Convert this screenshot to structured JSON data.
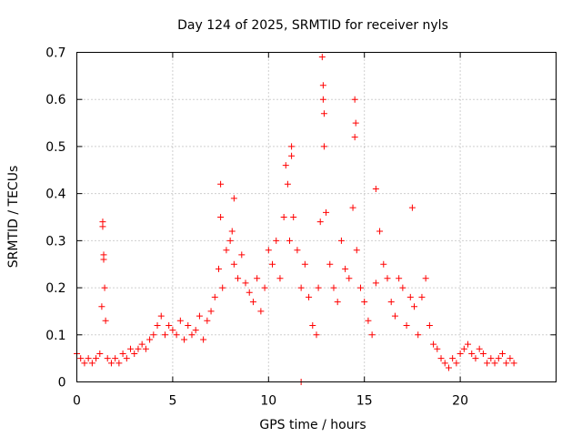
{
  "chart_data": {
    "type": "scatter",
    "title": "Day 124 of 2025, SRMTID for receiver nyls",
    "xlabel": "GPS time / hours",
    "ylabel": "SRMTID / TECUs",
    "xlim": [
      0,
      25
    ],
    "ylim": [
      0,
      0.7
    ],
    "xticks": [
      0,
      5,
      10,
      15,
      20
    ],
    "xtick_labels": [
      "0",
      "5",
      "10",
      "15",
      "20"
    ],
    "yticks": [
      0,
      0.1,
      0.2,
      0.3,
      0.4,
      0.5,
      0.6,
      0.7
    ],
    "ytick_labels": [
      "0",
      "0.1",
      "0.2",
      "0.3",
      "0.4",
      "0.5",
      "0.6",
      "0.7"
    ],
    "grid": true,
    "marker": "plus",
    "color": "#ff0000",
    "series": [
      {
        "name": "SRMTID",
        "x": [
          0.0,
          0.2,
          0.4,
          0.6,
          0.8,
          1.0,
          1.2,
          1.3,
          1.35,
          1.4,
          1.45,
          1.5,
          1.6,
          1.8,
          2.0,
          2.2,
          2.4,
          2.6,
          2.8,
          3.0,
          3.2,
          3.4,
          3.6,
          3.8,
          4.0,
          4.2,
          4.4,
          4.6,
          4.8,
          5.0,
          5.2,
          5.4,
          5.6,
          5.8,
          6.0,
          6.2,
          6.4,
          6.6,
          6.8,
          7.0,
          7.2,
          7.4,
          7.5,
          7.6,
          7.8,
          8.0,
          8.1,
          8.2,
          8.4,
          8.6,
          8.8,
          9.0,
          9.2,
          9.4,
          9.6,
          9.8,
          10.0,
          10.2,
          10.4,
          10.6,
          10.8,
          11.0,
          11.1,
          11.2,
          11.3,
          11.5,
          11.7,
          11.9,
          12.1,
          12.3,
          12.5,
          12.6,
          12.7,
          12.8,
          12.85,
          12.9,
          13.0,
          13.2,
          13.4,
          13.6,
          13.8,
          14.0,
          14.2,
          14.4,
          14.5,
          14.6,
          14.8,
          15.0,
          15.2,
          15.4,
          15.6,
          15.8,
          16.0,
          16.2,
          16.4,
          16.6,
          16.8,
          17.0,
          17.2,
          17.4,
          17.6,
          17.8,
          18.0,
          18.2,
          18.4,
          18.6,
          18.8,
          19.0,
          19.2,
          19.4,
          19.6,
          19.8,
          20.0,
          20.2,
          20.4,
          20.6,
          20.8,
          21.0,
          21.2,
          21.4,
          21.6,
          21.8,
          22.0,
          22.2,
          22.4,
          22.6,
          22.8,
          11.7,
          1.35,
          1.4,
          7.5,
          8.2,
          10.9,
          11.2,
          12.85,
          12.9,
          14.5,
          14.55,
          15.6,
          17.5
        ],
        "y": [
          0.06,
          0.05,
          0.04,
          0.05,
          0.04,
          0.05,
          0.06,
          0.16,
          0.33,
          0.27,
          0.2,
          0.13,
          0.05,
          0.04,
          0.05,
          0.04,
          0.06,
          0.05,
          0.07,
          0.06,
          0.07,
          0.08,
          0.07,
          0.09,
          0.1,
          0.12,
          0.14,
          0.1,
          0.12,
          0.11,
          0.1,
          0.13,
          0.09,
          0.12,
          0.1,
          0.11,
          0.14,
          0.09,
          0.13,
          0.15,
          0.18,
          0.24,
          0.35,
          0.2,
          0.28,
          0.3,
          0.32,
          0.25,
          0.22,
          0.27,
          0.21,
          0.19,
          0.17,
          0.22,
          0.15,
          0.2,
          0.28,
          0.25,
          0.3,
          0.22,
          0.35,
          0.42,
          0.3,
          0.48,
          0.35,
          0.28,
          0.2,
          0.25,
          0.18,
          0.12,
          0.1,
          0.2,
          0.34,
          0.69,
          0.63,
          0.5,
          0.36,
          0.25,
          0.2,
          0.17,
          0.3,
          0.24,
          0.22,
          0.37,
          0.52,
          0.28,
          0.2,
          0.17,
          0.13,
          0.1,
          0.21,
          0.32,
          0.25,
          0.22,
          0.17,
          0.14,
          0.22,
          0.2,
          0.12,
          0.18,
          0.16,
          0.1,
          0.18,
          0.22,
          0.12,
          0.08,
          0.07,
          0.05,
          0.04,
          0.03,
          0.05,
          0.04,
          0.06,
          0.07,
          0.08,
          0.06,
          0.05,
          0.07,
          0.06,
          0.04,
          0.05,
          0.04,
          0.05,
          0.06,
          0.04,
          0.05,
          0.04,
          0.0,
          0.34,
          0.26,
          0.42,
          0.39,
          0.46,
          0.5,
          0.6,
          0.57,
          0.6,
          0.55,
          0.41,
          0.37
        ]
      }
    ]
  }
}
